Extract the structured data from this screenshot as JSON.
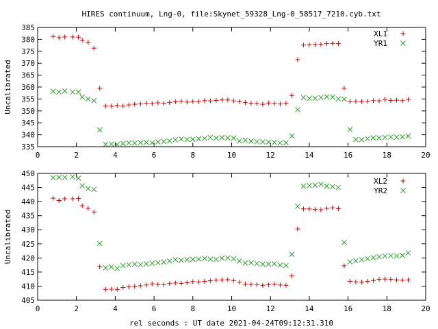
{
  "title": "HIRES continuum, Lng-0, file:Skynet_59328_Lng-0_58517_7210.cyb.txt",
  "xlabel": "rel seconds : UT date 2021-04-24T09:12:31.310",
  "colors": {
    "red": "#cc0000",
    "green": "#2ca02c"
  },
  "chart_data": [
    {
      "type": "scatter",
      "title": "HIRES continuum, Lng-0, file:Skynet_59328_Lng-0_58517_7210.cyb.txt",
      "xlabel": "",
      "ylabel": "Uncalibrated",
      "xlim": [
        0,
        20
      ],
      "ylim": [
        335,
        385
      ],
      "xticks": [
        0,
        2,
        4,
        6,
        8,
        10,
        12,
        14,
        16,
        18,
        20
      ],
      "yticks": [
        335,
        340,
        345,
        350,
        355,
        360,
        365,
        370,
        375,
        380,
        385
      ],
      "legend_position": "top-right",
      "grid": false,
      "x": [
        0.8,
        1.1,
        1.4,
        1.8,
        2.1,
        2.3,
        2.6,
        2.9,
        3.2,
        3.5,
        3.8,
        4.1,
        4.4,
        4.7,
        5.0,
        5.3,
        5.6,
        5.9,
        6.2,
        6.5,
        6.8,
        7.1,
        7.4,
        7.7,
        8.0,
        8.3,
        8.6,
        8.9,
        9.2,
        9.5,
        9.8,
        10.1,
        10.4,
        10.7,
        11.0,
        11.3,
        11.6,
        11.9,
        12.2,
        12.5,
        12.8,
        13.1,
        13.4,
        13.7,
        14.0,
        14.3,
        14.6,
        14.9,
        15.2,
        15.5,
        15.8,
        16.1,
        16.4,
        16.7,
        17.0,
        17.3,
        17.6,
        17.9,
        18.2,
        18.5,
        18.8,
        19.1
      ],
      "series": [
        {
          "name": "XL1",
          "marker": "plus",
          "color": "#cc0000",
          "values": [
            381.2,
            380.7,
            381.0,
            381.0,
            380.9,
            379.6,
            378.8,
            376.3,
            359.5,
            352.0,
            352.0,
            352.2,
            352.0,
            352.5,
            352.8,
            352.9,
            353.2,
            353.0,
            353.4,
            353.2,
            353.5,
            353.8,
            354.0,
            353.7,
            353.9,
            353.9,
            354.3,
            354.2,
            354.4,
            354.6,
            354.6,
            354.2,
            353.9,
            353.5,
            353.2,
            353.1,
            352.8,
            353.3,
            353.1,
            352.9,
            353.2,
            356.5,
            371.5,
            377.6,
            377.7,
            377.8,
            377.9,
            378.2,
            378.3,
            378.2,
            359.5,
            353.9,
            354.0,
            353.9,
            354.0,
            354.3,
            354.2,
            354.8,
            354.4,
            354.5,
            354.3,
            354.8
          ]
        },
        {
          "name": "YR1",
          "marker": "cross",
          "color": "#2ca02c",
          "values": [
            358.2,
            357.9,
            358.3,
            357.9,
            358.0,
            355.8,
            355.0,
            354.3,
            342.0,
            336.0,
            336.1,
            335.9,
            336.3,
            336.6,
            336.5,
            336.7,
            336.8,
            336.6,
            337.0,
            337.2,
            337.4,
            337.9,
            338.2,
            338.0,
            338.1,
            338.3,
            338.5,
            338.9,
            338.6,
            338.8,
            338.7,
            338.6,
            337.4,
            337.7,
            337.3,
            337.1,
            337.0,
            336.9,
            336.8,
            336.6,
            336.7,
            339.5,
            350.5,
            355.6,
            355.2,
            355.3,
            355.6,
            355.9,
            355.8,
            355.1,
            354.9,
            342.2,
            338.0,
            337.9,
            338.4,
            338.7,
            338.7,
            338.9,
            339.0,
            339.0,
            339.1,
            339.5
          ]
        }
      ]
    },
    {
      "type": "scatter",
      "title": "",
      "xlabel": "rel seconds : UT date 2021-04-24T09:12:31.310",
      "ylabel": "Uncalibrated",
      "xlim": [
        0,
        20
      ],
      "ylim": [
        405,
        450
      ],
      "xticks": [
        0,
        2,
        4,
        6,
        8,
        10,
        12,
        14,
        16,
        18,
        20
      ],
      "yticks": [
        405,
        410,
        415,
        420,
        425,
        430,
        435,
        440,
        445,
        450
      ],
      "legend_position": "top-right",
      "grid": false,
      "x": [
        0.8,
        1.1,
        1.4,
        1.8,
        2.1,
        2.3,
        2.6,
        2.9,
        3.2,
        3.5,
        3.8,
        4.1,
        4.4,
        4.7,
        5.0,
        5.3,
        5.6,
        5.9,
        6.2,
        6.5,
        6.8,
        7.1,
        7.4,
        7.7,
        8.0,
        8.3,
        8.6,
        8.9,
        9.2,
        9.5,
        9.8,
        10.1,
        10.4,
        10.7,
        11.0,
        11.3,
        11.6,
        11.9,
        12.2,
        12.5,
        12.8,
        13.1,
        13.4,
        13.7,
        14.0,
        14.3,
        14.6,
        14.9,
        15.2,
        15.5,
        15.8,
        16.1,
        16.4,
        16.7,
        17.0,
        17.3,
        17.6,
        17.9,
        18.2,
        18.5,
        18.8,
        19.1
      ],
      "series": [
        {
          "name": "XL2",
          "marker": "plus",
          "color": "#cc0000",
          "values": [
            441.2,
            440.4,
            441.0,
            441.0,
            441.1,
            438.5,
            437.6,
            436.3,
            416.9,
            408.8,
            408.9,
            408.8,
            409.5,
            409.7,
            409.9,
            410.1,
            410.4,
            410.8,
            410.6,
            410.5,
            410.9,
            411.1,
            411.0,
            411.2,
            411.6,
            411.5,
            411.7,
            411.9,
            412.1,
            412.2,
            412.3,
            412.0,
            411.4,
            410.7,
            410.6,
            410.5,
            410.3,
            410.5,
            410.7,
            410.4,
            410.3,
            413.6,
            430.3,
            437.4,
            437.4,
            437.2,
            437.1,
            437.6,
            437.8,
            437.5,
            417.2,
            411.7,
            411.5,
            411.4,
            411.7,
            412.0,
            412.4,
            412.5,
            412.4,
            412.2,
            412.1,
            412.2
          ]
        },
        {
          "name": "YR2",
          "marker": "cross",
          "color": "#2ca02c",
          "values": [
            448.5,
            448.6,
            448.6,
            448.8,
            448.3,
            445.6,
            444.6,
            444.3,
            425.1,
            416.5,
            416.8,
            416.3,
            417.3,
            417.6,
            417.8,
            417.6,
            417.9,
            418.1,
            418.3,
            418.5,
            418.9,
            419.4,
            419.2,
            419.4,
            419.5,
            419.6,
            419.8,
            419.6,
            419.5,
            419.9,
            420.0,
            419.7,
            418.9,
            418.2,
            418.3,
            418.0,
            417.8,
            417.8,
            417.9,
            417.5,
            417.3,
            421.3,
            438.3,
            445.5,
            445.7,
            445.8,
            446.1,
            445.5,
            445.3,
            445.0,
            425.5,
            418.6,
            419.0,
            419.4,
            419.7,
            420.1,
            420.4,
            420.7,
            420.8,
            420.7,
            420.9,
            421.8
          ]
        }
      ]
    }
  ]
}
